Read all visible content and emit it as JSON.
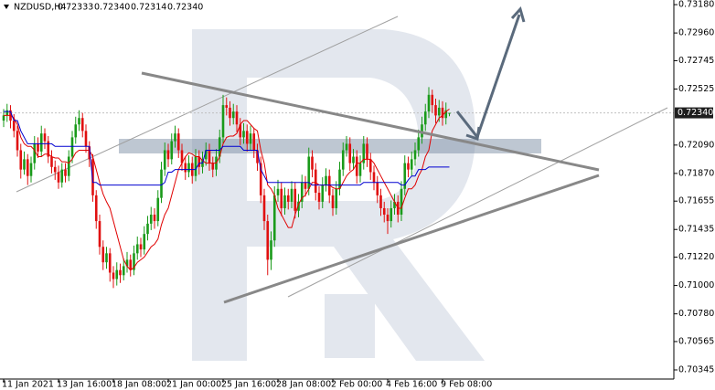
{
  "chart_data": {
    "type": "candlestick",
    "title": "NZDUSD,H4",
    "quote": [
      "0.72333",
      "0.72340",
      "0.72314",
      "0.72340"
    ],
    "current_price": {
      "value": 0.7234,
      "label": "0.72340"
    },
    "up_color": "#1a9a1a",
    "down_color": "#e01010",
    "categories": [
      "11 Jan 2021",
      null,
      null,
      null,
      null,
      null,
      null,
      null,
      null,
      null,
      null,
      null,
      null,
      null,
      null,
      null,
      "13 Jan 16:00",
      null,
      null,
      null,
      null,
      null,
      null,
      null,
      null,
      null,
      null,
      null,
      null,
      null,
      null,
      null,
      "18 Jan 08:00",
      null,
      null,
      null,
      null,
      null,
      null,
      null,
      null,
      null,
      null,
      null,
      null,
      null,
      null,
      null,
      "21 Jan 00:00",
      null,
      null,
      null,
      null,
      null,
      null,
      null,
      null,
      null,
      null,
      null,
      null,
      null,
      null,
      null,
      "25 Jan 16:00",
      null,
      null,
      null,
      null,
      null,
      null,
      null,
      null,
      null,
      null,
      null,
      null,
      null,
      null,
      null,
      "28 Jan 08:00",
      null,
      null,
      null,
      null,
      null,
      null,
      null,
      null,
      null,
      null,
      null,
      null,
      null,
      null,
      null,
      "2 Feb 00:00",
      null,
      null,
      null,
      null,
      null,
      null,
      null,
      null,
      null,
      null,
      null,
      null,
      null,
      null,
      null,
      "4 Feb 16:00",
      null,
      null,
      null,
      null,
      null,
      null,
      null,
      null,
      null,
      null,
      null,
      null,
      null,
      null,
      null,
      "9 Feb 08:00",
      null,
      null
    ],
    "ohlc": [
      [
        0.7228,
        0.7237,
        0.7223,
        0.7232
      ],
      [
        0.7232,
        0.7241,
        0.7227,
        0.7236
      ],
      [
        0.7236,
        0.724,
        0.7222,
        0.7228
      ],
      [
        0.7228,
        0.7233,
        0.7215,
        0.722
      ],
      [
        0.722,
        0.7224,
        0.72,
        0.7205
      ],
      [
        0.7205,
        0.721,
        0.7183,
        0.719
      ],
      [
        0.719,
        0.7204,
        0.7186,
        0.7198
      ],
      [
        0.7198,
        0.7202,
        0.7178,
        0.7185
      ],
      [
        0.7185,
        0.72,
        0.718,
        0.7195
      ],
      [
        0.7195,
        0.7216,
        0.719,
        0.721
      ],
      [
        0.721,
        0.7215,
        0.7199,
        0.7204
      ],
      [
        0.7204,
        0.7224,
        0.72,
        0.7218
      ],
      [
        0.7218,
        0.7222,
        0.7206,
        0.7212
      ],
      [
        0.7212,
        0.7216,
        0.7195,
        0.72
      ],
      [
        0.72,
        0.7205,
        0.7187,
        0.7192
      ],
      [
        0.7192,
        0.7197,
        0.7182,
        0.7188
      ],
      [
        0.7188,
        0.7193,
        0.7175,
        0.718
      ],
      [
        0.718,
        0.7195,
        0.7176,
        0.719
      ],
      [
        0.719,
        0.7195,
        0.718,
        0.7185
      ],
      [
        0.7185,
        0.7205,
        0.7181,
        0.72
      ],
      [
        0.72,
        0.722,
        0.7195,
        0.7215
      ],
      [
        0.7215,
        0.7231,
        0.721,
        0.7225
      ],
      [
        0.7225,
        0.7236,
        0.722,
        0.723
      ],
      [
        0.723,
        0.7234,
        0.7215,
        0.722
      ],
      [
        0.722,
        0.7225,
        0.7203,
        0.7208
      ],
      [
        0.7208,
        0.7212,
        0.7192,
        0.7198
      ],
      [
        0.7198,
        0.7202,
        0.7165,
        0.717
      ],
      [
        0.717,
        0.7174,
        0.7144,
        0.715
      ],
      [
        0.715,
        0.7155,
        0.7124,
        0.713
      ],
      [
        0.713,
        0.7135,
        0.7112,
        0.7118
      ],
      [
        0.7118,
        0.713,
        0.7113,
        0.7125
      ],
      [
        0.7125,
        0.7129,
        0.7103,
        0.711
      ],
      [
        0.711,
        0.7115,
        0.7098,
        0.7105
      ],
      [
        0.7105,
        0.7118,
        0.71,
        0.7112
      ],
      [
        0.7112,
        0.7117,
        0.7102,
        0.7108
      ],
      [
        0.7108,
        0.7121,
        0.7104,
        0.7115
      ],
      [
        0.7115,
        0.7126,
        0.711,
        0.712
      ],
      [
        0.712,
        0.7124,
        0.7107,
        0.7112
      ],
      [
        0.7112,
        0.7131,
        0.7108,
        0.7125
      ],
      [
        0.7125,
        0.7138,
        0.712,
        0.7132
      ],
      [
        0.7132,
        0.7137,
        0.7122,
        0.7128
      ],
      [
        0.7128,
        0.7146,
        0.7124,
        0.714
      ],
      [
        0.714,
        0.7154,
        0.7135,
        0.7148
      ],
      [
        0.7148,
        0.7161,
        0.7143,
        0.7155
      ],
      [
        0.7155,
        0.716,
        0.7144,
        0.715
      ],
      [
        0.715,
        0.7174,
        0.7146,
        0.7168
      ],
      [
        0.7168,
        0.7196,
        0.7164,
        0.719
      ],
      [
        0.719,
        0.7211,
        0.7185,
        0.7205
      ],
      [
        0.7205,
        0.721,
        0.7192,
        0.7198
      ],
      [
        0.7198,
        0.7218,
        0.7194,
        0.7212
      ],
      [
        0.7212,
        0.7224,
        0.7207,
        0.7218
      ],
      [
        0.7218,
        0.7222,
        0.7199,
        0.7205
      ],
      [
        0.7205,
        0.721,
        0.7189,
        0.7195
      ],
      [
        0.7195,
        0.72,
        0.7182,
        0.7188
      ],
      [
        0.7188,
        0.7201,
        0.7184,
        0.7195
      ],
      [
        0.7195,
        0.72,
        0.7179,
        0.7185
      ],
      [
        0.7185,
        0.7206,
        0.7181,
        0.72
      ],
      [
        0.72,
        0.7205,
        0.7186,
        0.7192
      ],
      [
        0.7192,
        0.7204,
        0.7187,
        0.7198
      ],
      [
        0.7198,
        0.7211,
        0.7193,
        0.7205
      ],
      [
        0.7205,
        0.721,
        0.7189,
        0.7195
      ],
      [
        0.7195,
        0.72,
        0.7184,
        0.719
      ],
      [
        0.719,
        0.7206,
        0.7185,
        0.72
      ],
      [
        0.72,
        0.7221,
        0.7195,
        0.7215
      ],
      [
        0.7215,
        0.7248,
        0.721,
        0.724
      ],
      [
        0.724,
        0.7246,
        0.7232,
        0.7238
      ],
      [
        0.7238,
        0.7243,
        0.7224,
        0.723
      ],
      [
        0.723,
        0.7241,
        0.7225,
        0.7235
      ],
      [
        0.7235,
        0.724,
        0.7219,
        0.7225
      ],
      [
        0.7225,
        0.723,
        0.7209,
        0.7215
      ],
      [
        0.7215,
        0.7226,
        0.721,
        0.722
      ],
      [
        0.722,
        0.7225,
        0.7204,
        0.721
      ],
      [
        0.721,
        0.7224,
        0.7205,
        0.7218
      ],
      [
        0.7218,
        0.7222,
        0.7199,
        0.7205
      ],
      [
        0.7205,
        0.721,
        0.7189,
        0.7195
      ],
      [
        0.7195,
        0.72,
        0.7164,
        0.717
      ],
      [
        0.717,
        0.7175,
        0.7143,
        0.715
      ],
      [
        0.715,
        0.7155,
        0.7108,
        0.712
      ],
      [
        0.712,
        0.7142,
        0.7112,
        0.7135
      ],
      [
        0.7135,
        0.7177,
        0.713,
        0.717
      ],
      [
        0.717,
        0.7182,
        0.7165,
        0.7175
      ],
      [
        0.7175,
        0.718,
        0.7154,
        0.716
      ],
      [
        0.716,
        0.7176,
        0.7155,
        0.717
      ],
      [
        0.717,
        0.7175,
        0.7159,
        0.7165
      ],
      [
        0.7165,
        0.7181,
        0.716,
        0.7175
      ],
      [
        0.7175,
        0.718,
        0.7152,
        0.7158
      ],
      [
        0.7158,
        0.7171,
        0.7153,
        0.7165
      ],
      [
        0.7165,
        0.7186,
        0.716,
        0.718
      ],
      [
        0.718,
        0.7185,
        0.7169,
        0.7175
      ],
      [
        0.7175,
        0.7207,
        0.717,
        0.72
      ],
      [
        0.72,
        0.7205,
        0.7184,
        0.719
      ],
      [
        0.719,
        0.7195,
        0.7166,
        0.7172
      ],
      [
        0.7172,
        0.7177,
        0.7159,
        0.7165
      ],
      [
        0.7165,
        0.7184,
        0.716,
        0.7178
      ],
      [
        0.7178,
        0.7191,
        0.7173,
        0.7185
      ],
      [
        0.7185,
        0.719,
        0.7164,
        0.717
      ],
      [
        0.717,
        0.7175,
        0.7154,
        0.716
      ],
      [
        0.716,
        0.7181,
        0.7155,
        0.7175
      ],
      [
        0.7175,
        0.7196,
        0.717,
        0.719
      ],
      [
        0.719,
        0.7211,
        0.7185,
        0.7205
      ],
      [
        0.7205,
        0.7216,
        0.72,
        0.721
      ],
      [
        0.721,
        0.7215,
        0.7189,
        0.7195
      ],
      [
        0.7195,
        0.7206,
        0.719,
        0.72
      ],
      [
        0.72,
        0.7205,
        0.7179,
        0.7185
      ],
      [
        0.7185,
        0.7201,
        0.718,
        0.7195
      ],
      [
        0.7195,
        0.7216,
        0.719,
        0.721
      ],
      [
        0.721,
        0.7215,
        0.7192,
        0.7198
      ],
      [
        0.7198,
        0.7203,
        0.7182,
        0.7188
      ],
      [
        0.7188,
        0.7193,
        0.7174,
        0.718
      ],
      [
        0.718,
        0.7185,
        0.7164,
        0.717
      ],
      [
        0.717,
        0.7175,
        0.7154,
        0.716
      ],
      [
        0.716,
        0.7165,
        0.7149,
        0.7155
      ],
      [
        0.7155,
        0.716,
        0.714,
        0.715
      ],
      [
        0.715,
        0.7166,
        0.7145,
        0.716
      ],
      [
        0.716,
        0.7171,
        0.7155,
        0.7165
      ],
      [
        0.7165,
        0.717,
        0.7149,
        0.7155
      ],
      [
        0.7155,
        0.7181,
        0.715,
        0.7175
      ],
      [
        0.7175,
        0.7201,
        0.717,
        0.7195
      ],
      [
        0.7195,
        0.72,
        0.7184,
        0.719
      ],
      [
        0.719,
        0.7204,
        0.7185,
        0.7198
      ],
      [
        0.7198,
        0.7211,
        0.7193,
        0.7205
      ],
      [
        0.7205,
        0.7221,
        0.72,
        0.7215
      ],
      [
        0.7215,
        0.7231,
        0.721,
        0.7225
      ],
      [
        0.7225,
        0.7241,
        0.722,
        0.7235
      ],
      [
        0.7235,
        0.7254,
        0.723,
        0.7248
      ],
      [
        0.7248,
        0.7252,
        0.7234,
        0.724
      ],
      [
        0.724,
        0.7245,
        0.7226,
        0.7232
      ],
      [
        0.7232,
        0.7244,
        0.7227,
        0.7238
      ],
      [
        0.7238,
        0.7243,
        0.7224,
        0.723
      ],
      [
        0.723,
        0.7242,
        0.7225,
        0.7236
      ],
      [
        0.72333,
        0.7234,
        0.72314,
        0.7234
      ]
    ],
    "series": [
      {
        "color": "#e00000",
        "values": [
          0.7232,
          0.7232,
          0.7232,
          0.723,
          0.7225,
          0.7215,
          0.721,
          0.7208,
          0.7208,
          0.7205,
          0.72,
          0.72,
          0.7202,
          0.7202,
          0.72,
          0.7199,
          0.7199,
          0.7196,
          0.7196,
          0.7195,
          0.7198,
          0.7203,
          0.7205,
          0.7205,
          0.7205,
          0.7205,
          0.72,
          0.719,
          0.718,
          0.7171,
          0.7165,
          0.716,
          0.715,
          0.714,
          0.713,
          0.712,
          0.7115,
          0.7112,
          0.7114,
          0.7118,
          0.712,
          0.7122,
          0.7126,
          0.713,
          0.7132,
          0.7136,
          0.7147,
          0.7155,
          0.716,
          0.717,
          0.718,
          0.719,
          0.7195,
          0.72,
          0.7203,
          0.7202,
          0.72,
          0.72,
          0.7197,
          0.7195,
          0.7195,
          0.7195,
          0.7195,
          0.72,
          0.721,
          0.7215,
          0.7216,
          0.7216,
          0.7218,
          0.7225,
          0.7228,
          0.7228,
          0.7225,
          0.7222,
          0.722,
          0.7205,
          0.7195,
          0.7178,
          0.7175,
          0.717,
          0.716,
          0.7155,
          0.715,
          0.7145,
          0.7145,
          0.7155,
          0.7163,
          0.7168,
          0.717,
          0.7175,
          0.718,
          0.718,
          0.7178,
          0.7178,
          0.7178,
          0.7178,
          0.7176,
          0.7175,
          0.7175,
          0.718,
          0.7185,
          0.7188,
          0.719,
          0.7195,
          0.7195,
          0.7198,
          0.7198,
          0.7198,
          0.7195,
          0.719,
          0.7185,
          0.718,
          0.7175,
          0.717,
          0.7165,
          0.716,
          0.716,
          0.7168,
          0.7175,
          0.7175,
          0.7178,
          0.7185,
          0.719,
          0.72,
          0.7205,
          0.722,
          0.7225,
          0.723,
          0.7232,
          0.7235,
          0.7237
        ]
      },
      {
        "color": "#0000d0",
        "values": [
          0.7235,
          0.7235,
          0.7235,
          0.7228,
          0.7228,
          0.722,
          0.7215,
          0.721,
          0.721,
          0.721,
          0.721,
          0.721,
          0.721,
          0.721,
          0.721,
          0.7208,
          0.7208,
          0.7208,
          0.7208,
          0.7208,
          0.7208,
          0.7208,
          0.7208,
          0.7208,
          0.7208,
          0.7208,
          0.718,
          0.718,
          0.7178,
          0.7178,
          0.7178,
          0.7178,
          0.7178,
          0.7178,
          0.7178,
          0.7178,
          0.7178,
          0.7178,
          0.7178,
          0.7178,
          0.7178,
          0.7178,
          0.7178,
          0.7178,
          0.7178,
          0.7178,
          0.7178,
          0.718,
          0.7188,
          0.7188,
          0.719,
          0.719,
          0.719,
          0.719,
          0.719,
          0.719,
          0.719,
          0.7195,
          0.7195,
          0.7205,
          0.7205,
          0.7205,
          0.7205,
          0.7205,
          0.7208,
          0.7208,
          0.7208,
          0.7208,
          0.7208,
          0.7208,
          0.7205,
          0.7205,
          0.7205,
          0.7205,
          0.7205,
          0.719,
          0.7185,
          0.718,
          0.718,
          0.718,
          0.718,
          0.718,
          0.718,
          0.718,
          0.718,
          0.718,
          0.718,
          0.718,
          0.718,
          0.718,
          0.7178,
          0.7178,
          0.7178,
          0.7178,
          0.7178,
          0.7178,
          0.7178,
          0.7178,
          0.7178,
          0.7178,
          0.7178,
          0.7178,
          0.7178,
          0.7178,
          0.7178,
          0.718,
          0.718,
          0.718,
          0.718,
          0.718,
          0.718,
          0.718,
          0.718,
          0.718,
          0.718,
          0.718,
          0.7178,
          0.7178,
          0.7182,
          0.7185,
          0.7185,
          0.719,
          0.719,
          0.719,
          0.7192,
          0.7192,
          0.7192,
          0.7192,
          0.7192,
          0.7192,
          0.7192
        ]
      }
    ],
    "ylim": [
      0.70274,
      0.73216
    ],
    "yticks": [
      {
        "value": 0.7318,
        "label": "0.73180"
      },
      {
        "value": 0.7296,
        "label": "0.72960"
      },
      {
        "value": 0.72745,
        "label": "0.72745"
      },
      {
        "value": 0.72525,
        "label": "0.72525"
      },
      {
        "value": 0.7209,
        "label": "0.72090"
      },
      {
        "value": 0.7187,
        "label": "0.71870"
      },
      {
        "value": 0.71655,
        "label": "0.71655"
      },
      {
        "value": 0.71435,
        "label": "0.71435"
      },
      {
        "value": 0.7122,
        "label": "0.71220"
      },
      {
        "value": 0.71,
        "label": "0.71000"
      },
      {
        "value": 0.7078,
        "label": "0.70780"
      },
      {
        "value": 0.70565,
        "label": "0.70565"
      },
      {
        "value": 0.70345,
        "label": "0.70345"
      }
    ]
  }
}
